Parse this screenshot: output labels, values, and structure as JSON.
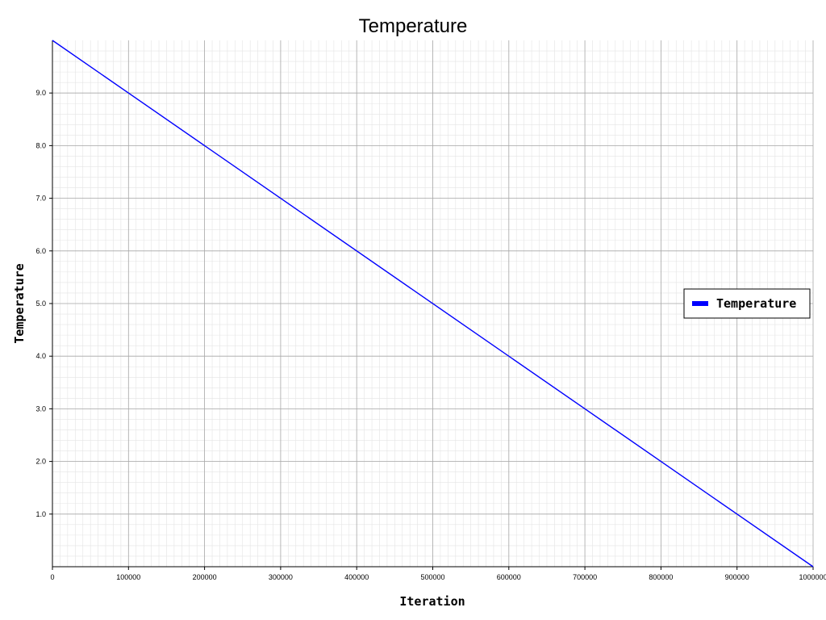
{
  "chart_data": {
    "type": "line",
    "title": "Temperature",
    "xlabel": "Iteration",
    "ylabel": "Temperature",
    "xlim": [
      0,
      1000000
    ],
    "ylim": [
      0,
      10
    ],
    "grid": true,
    "legend_position": "right",
    "x_ticks": [
      0,
      100000,
      200000,
      300000,
      400000,
      500000,
      600000,
      700000,
      800000,
      900000,
      1000000
    ],
    "x_tick_labels": [
      "0",
      "100000",
      "200000",
      "300000",
      "400000",
      "500000",
      "600000",
      "700000",
      "800000",
      "900000",
      "1000000"
    ],
    "y_ticks": [
      1,
      2,
      3,
      4,
      5,
      6,
      7,
      8,
      9
    ],
    "y_tick_labels": [
      "1.0",
      "2.0",
      "3.0",
      "4.0",
      "5.0",
      "6.0",
      "7.0",
      "8.0",
      "9.0"
    ],
    "series": [
      {
        "name": "Temperature",
        "color": "#0000ff",
        "x": [
          0,
          1000000
        ],
        "y": [
          10,
          0
        ]
      }
    ]
  }
}
